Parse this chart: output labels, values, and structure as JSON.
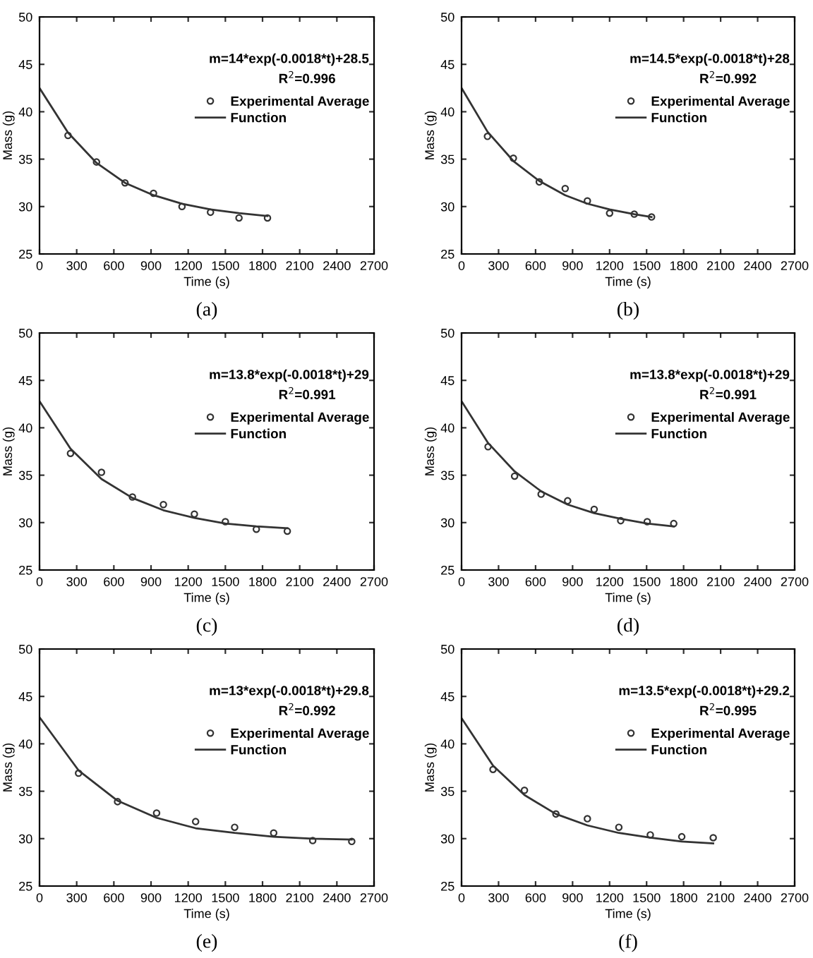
{
  "chart_data": [
    {
      "type": "scatter",
      "xlabel": "Time (s)",
      "ylabel": "Mass (g)",
      "xlim": [
        0,
        2700
      ],
      "ylim": [
        25,
        50
      ],
      "xticks": [
        0,
        300,
        600,
        900,
        1200,
        1500,
        1800,
        2100,
        2400,
        2700
      ],
      "yticks": [
        25,
        30,
        35,
        40,
        45,
        50
      ],
      "grid": false,
      "legend": "top right",
      "annotations": [
        "m=14*exp(-0.0018*t)+28.5",
        "R$^{2}$=0.996",
        "(a)"
      ],
      "series": [
        {
          "name": "Experimental Average",
          "marker": "circle",
          "color": "#333333",
          "x": [
            230,
            460,
            690,
            920,
            1150,
            1380,
            1610,
            1840
          ],
          "values": [
            37.5,
            34.7,
            32.5,
            31.4,
            30.0,
            29.4,
            28.8,
            28.8
          ]
        },
        {
          "name": "Function",
          "type": "line",
          "line_style": "solid",
          "color": "#333333",
          "x": [
            0,
            230,
            460,
            690,
            920,
            1150,
            1380,
            1610,
            1840
          ],
          "values": [
            42.5,
            37.8,
            34.6,
            32.5,
            31.2,
            30.3,
            29.7,
            29.3,
            29.0
          ]
        }
      ]
    },
    {
      "type": "scatter",
      "xlabel": "Time (s)",
      "ylabel": "Mass (g)",
      "xlim": [
        0,
        2700
      ],
      "ylim": [
        25,
        50
      ],
      "xticks": [
        0,
        300,
        600,
        900,
        1200,
        1500,
        1800,
        2100,
        2400,
        2700
      ],
      "yticks": [
        25,
        30,
        35,
        40,
        45,
        50
      ],
      "grid": false,
      "legend": "top right",
      "annotations": [
        "m=14.5*exp(-0.0018*t)+28",
        "R$^{2}$=0.992",
        "(b)"
      ],
      "series": [
        {
          "name": "Experimental Average",
          "marker": "circle",
          "color": "#333333",
          "x": [
            210,
            420,
            630,
            840,
            1020,
            1200,
            1400,
            1540
          ],
          "values": [
            37.4,
            35.1,
            32.6,
            31.9,
            30.6,
            29.3,
            29.2,
            28.9
          ]
        },
        {
          "name": "Function",
          "type": "line",
          "line_style": "solid",
          "color": "#333333",
          "x": [
            0,
            210,
            420,
            630,
            840,
            1020,
            1200,
            1400,
            1540
          ],
          "values": [
            42.5,
            37.9,
            34.8,
            32.7,
            31.2,
            30.3,
            29.7,
            29.2,
            28.9
          ]
        }
      ]
    },
    {
      "type": "scatter",
      "xlabel": "Time (s)",
      "ylabel": "Mass (g)",
      "xlim": [
        0,
        2700
      ],
      "ylim": [
        25,
        50
      ],
      "xticks": [
        0,
        300,
        600,
        900,
        1200,
        1500,
        1800,
        2100,
        2400,
        2700
      ],
      "yticks": [
        25,
        30,
        35,
        40,
        45,
        50
      ],
      "grid": false,
      "legend": "top right",
      "annotations": [
        "m=13.8*exp(-0.0018*t)+29",
        "R$^{2}$=0.991",
        "(c)"
      ],
      "series": [
        {
          "name": "Experimental Average",
          "marker": "circle",
          "color": "#333333",
          "x": [
            250,
            500,
            750,
            1000,
            1250,
            1500,
            1750,
            2000
          ],
          "values": [
            37.3,
            35.3,
            32.7,
            31.9,
            30.9,
            30.1,
            29.3,
            29.1
          ]
        },
        {
          "name": "Function",
          "type": "line",
          "line_style": "solid",
          "color": "#333333",
          "x": [
            0,
            250,
            500,
            750,
            1000,
            1250,
            1500,
            1750,
            2000
          ],
          "values": [
            42.8,
            37.8,
            34.6,
            32.6,
            31.3,
            30.5,
            29.9,
            29.6,
            29.4
          ]
        }
      ]
    },
    {
      "type": "scatter",
      "xlabel": "Time (s)",
      "ylabel": "Mass (g)",
      "xlim": [
        0,
        2700
      ],
      "ylim": [
        25,
        50
      ],
      "xticks": [
        0,
        300,
        600,
        900,
        1200,
        1500,
        1800,
        2100,
        2400,
        2700
      ],
      "yticks": [
        25,
        30,
        35,
        40,
        45,
        50
      ],
      "grid": false,
      "legend": "top right",
      "annotations": [
        "m=13.8*exp(-0.0018*t)+29",
        "R$^{2}$=0.991",
        "(d)"
      ],
      "series": [
        {
          "name": "Experimental Average",
          "marker": "circle",
          "color": "#333333",
          "x": [
            215,
            430,
            645,
            860,
            1075,
            1290,
            1505,
            1720
          ],
          "values": [
            38.0,
            34.9,
            33.0,
            32.3,
            31.4,
            30.2,
            30.1,
            29.9
          ]
        },
        {
          "name": "Function",
          "type": "line",
          "line_style": "solid",
          "color": "#333333",
          "x": [
            0,
            215,
            430,
            645,
            860,
            1075,
            1290,
            1505,
            1720
          ],
          "values": [
            42.8,
            38.4,
            35.4,
            33.3,
            31.9,
            31.0,
            30.4,
            29.9,
            29.6
          ]
        }
      ]
    },
    {
      "type": "scatter",
      "xlabel": "Time (s)",
      "ylabel": "Mass (g)",
      "xlim": [
        0,
        2700
      ],
      "ylim": [
        25,
        50
      ],
      "xticks": [
        0,
        300,
        600,
        900,
        1200,
        1500,
        1800,
        2100,
        2400,
        2700
      ],
      "yticks": [
        25,
        30,
        35,
        40,
        45,
        50
      ],
      "grid": false,
      "legend": "top right",
      "annotations": [
        "m=13*exp(-0.0018*t)+29.8",
        "R$^{2}$=0.992",
        "(e)"
      ],
      "series": [
        {
          "name": "Experimental Average",
          "marker": "circle",
          "color": "#333333",
          "x": [
            315,
            630,
            945,
            1260,
            1575,
            1890,
            2205,
            2520
          ],
          "values": [
            36.9,
            33.9,
            32.7,
            31.8,
            31.2,
            30.6,
            29.8,
            29.7
          ]
        },
        {
          "name": "Function",
          "type": "line",
          "line_style": "solid",
          "color": "#333333",
          "x": [
            0,
            315,
            630,
            945,
            1260,
            1575,
            1890,
            2205,
            2520
          ],
          "values": [
            42.8,
            37.2,
            34.0,
            32.2,
            31.1,
            30.6,
            30.2,
            30.0,
            29.9
          ]
        }
      ]
    },
    {
      "type": "scatter",
      "xlabel": "Time (s)",
      "ylabel": "Mass (g)",
      "xlim": [
        0,
        2700
      ],
      "ylim": [
        25,
        50
      ],
      "xticks": [
        0,
        300,
        600,
        900,
        1200,
        1500,
        1800,
        2100,
        2400,
        2700
      ],
      "yticks": [
        25,
        30,
        35,
        40,
        45,
        50
      ],
      "grid": false,
      "legend": "top right",
      "annotations": [
        "m=13.5*exp(-0.0018*t)+29.2",
        "R$^{2}$=0.995",
        "(f)"
      ],
      "series": [
        {
          "name": "Experimental Average",
          "marker": "circle",
          "color": "#333333",
          "x": [
            255,
            510,
            765,
            1020,
            1275,
            1530,
            1785,
            2040
          ],
          "values": [
            37.3,
            35.1,
            32.6,
            32.1,
            31.2,
            30.4,
            30.2,
            30.1
          ]
        },
        {
          "name": "Function",
          "type": "line",
          "line_style": "solid",
          "color": "#333333",
          "x": [
            0,
            255,
            510,
            765,
            1020,
            1275,
            1530,
            1785,
            2040
          ],
          "values": [
            42.7,
            37.7,
            34.6,
            32.6,
            31.4,
            30.6,
            30.1,
            29.7,
            29.5
          ]
        }
      ]
    }
  ]
}
